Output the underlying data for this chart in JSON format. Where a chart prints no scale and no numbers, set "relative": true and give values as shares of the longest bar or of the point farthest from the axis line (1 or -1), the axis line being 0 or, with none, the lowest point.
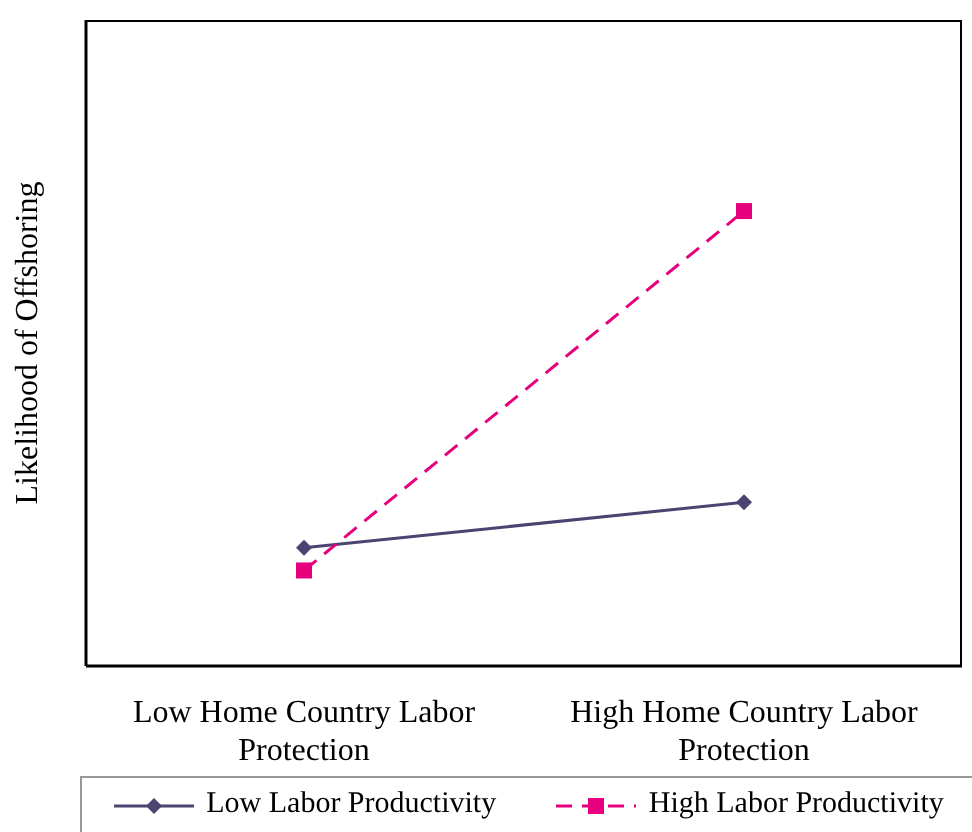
{
  "chart_data": {
    "type": "line",
    "relative": true,
    "ylabel": "Likelihood of Offshoring",
    "categories": [
      "Low Home Country Labor Protection",
      "High Home Country Labor Protection"
    ],
    "series": [
      {
        "name": "Low Labor Productivity",
        "color": "#4b4470",
        "values": [
          0.26,
          0.36
        ],
        "marker": "diamond",
        "line_style": "solid"
      },
      {
        "name": "High Labor Productivity",
        "color": "#e6007e",
        "values": [
          0.21,
          1
        ],
        "marker": "square",
        "line_style": "dashed"
      }
    ],
    "legend": "bottom",
    "grid": false
  }
}
